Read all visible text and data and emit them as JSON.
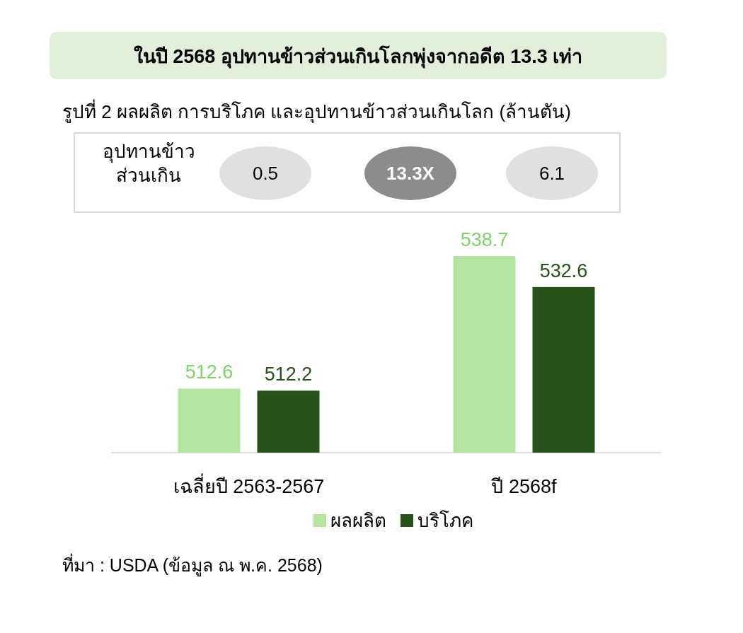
{
  "chart_data": [
    {
      "type": "other",
      "title": "ในปี 2568 อุปทานข้าวส่วนเกินโลกพุ่งจากอดีต 13.3 เท่า",
      "subtitle": "รูปที่ 2 ผลผลิต การบริโภค และอุปทานข้าวส่วนเกินโลก (ล้านตัน)",
      "annotations": [
        "อุปทานข้าว\nส่วนเกิน",
        "0.5",
        "13.3X",
        "6.1"
      ],
      "colors": [
        "#e0e0e0",
        "#8c8c8c",
        "#e0e0e0"
      ]
    },
    {
      "type": "bar",
      "categories": [
        "เฉลี่ยปี 2563-2567",
        "ปี 2568f"
      ],
      "series": [
        {
          "name": "ผลผลิต",
          "color": "#b3e5a1",
          "values": [
            512.6,
            538.7
          ]
        },
        {
          "name": "บริโภค",
          "color": "#27521a",
          "values": [
            512.2,
            532.6
          ]
        }
      ],
      "ylim": [
        500,
        538.7
      ],
      "data_labels": true,
      "legend": "bottom",
      "annotations": [
        "ที่มา : USDA (ข้อมูล ณ พ.ค. 2568)"
      ]
    }
  ]
}
